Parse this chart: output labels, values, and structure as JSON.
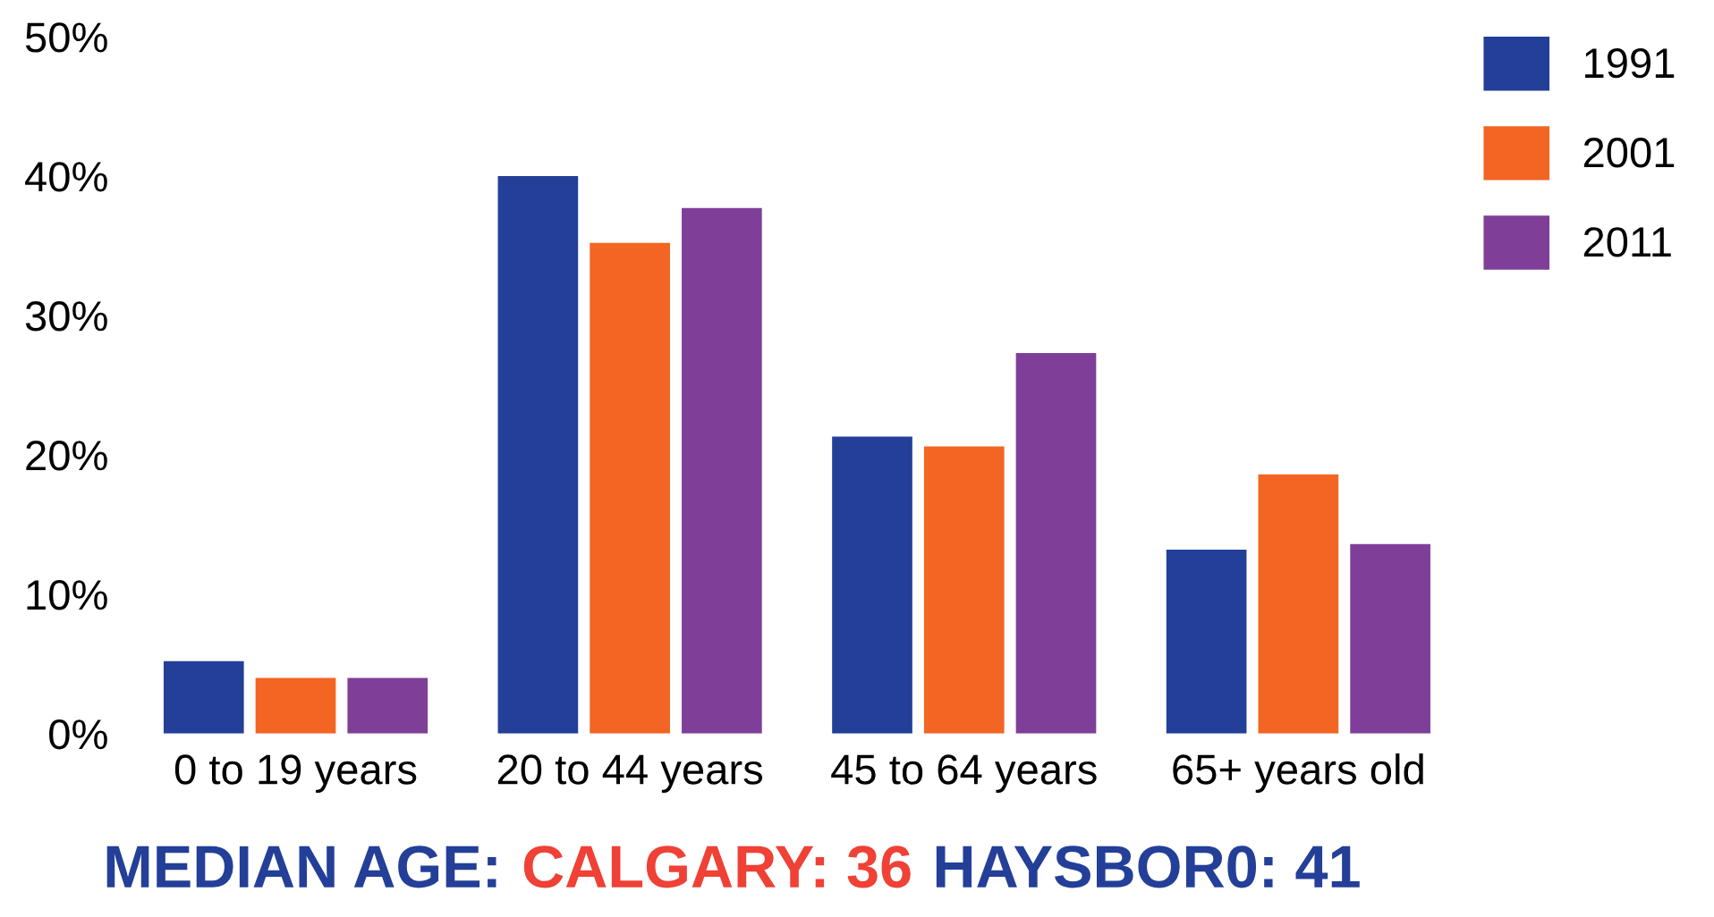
{
  "chart_data": {
    "type": "bar",
    "categories": [
      "0 to 19 years",
      "20 to 44 years",
      "45 to 64 years",
      "65+ years old"
    ],
    "series": [
      {
        "name": "1991",
        "color": "#233f98",
        "values": [
          5.2,
          40,
          21.3,
          13.2
        ]
      },
      {
        "name": "2001",
        "color": "#f26522",
        "values": [
          4.0,
          35.2,
          20.6,
          18.6
        ]
      },
      {
        "name": "2011",
        "color": "#7f3f98",
        "values": [
          4.0,
          37.7,
          27.3,
          13.6
        ]
      }
    ],
    "ylim": [
      0,
      50
    ],
    "yticks": [
      {
        "value": 0,
        "label": "0%"
      },
      {
        "value": 10,
        "label": "10%"
      },
      {
        "value": 20,
        "label": "20%"
      },
      {
        "value": 30,
        "label": "30%"
      },
      {
        "value": 40,
        "label": "40%"
      },
      {
        "value": 50,
        "label": "50%"
      }
    ],
    "grid": false,
    "legend": "top right",
    "annotations": [
      "MEDIAN AGE:",
      "CALGARY: 36",
      "HAYSBOR0: 41"
    ]
  }
}
